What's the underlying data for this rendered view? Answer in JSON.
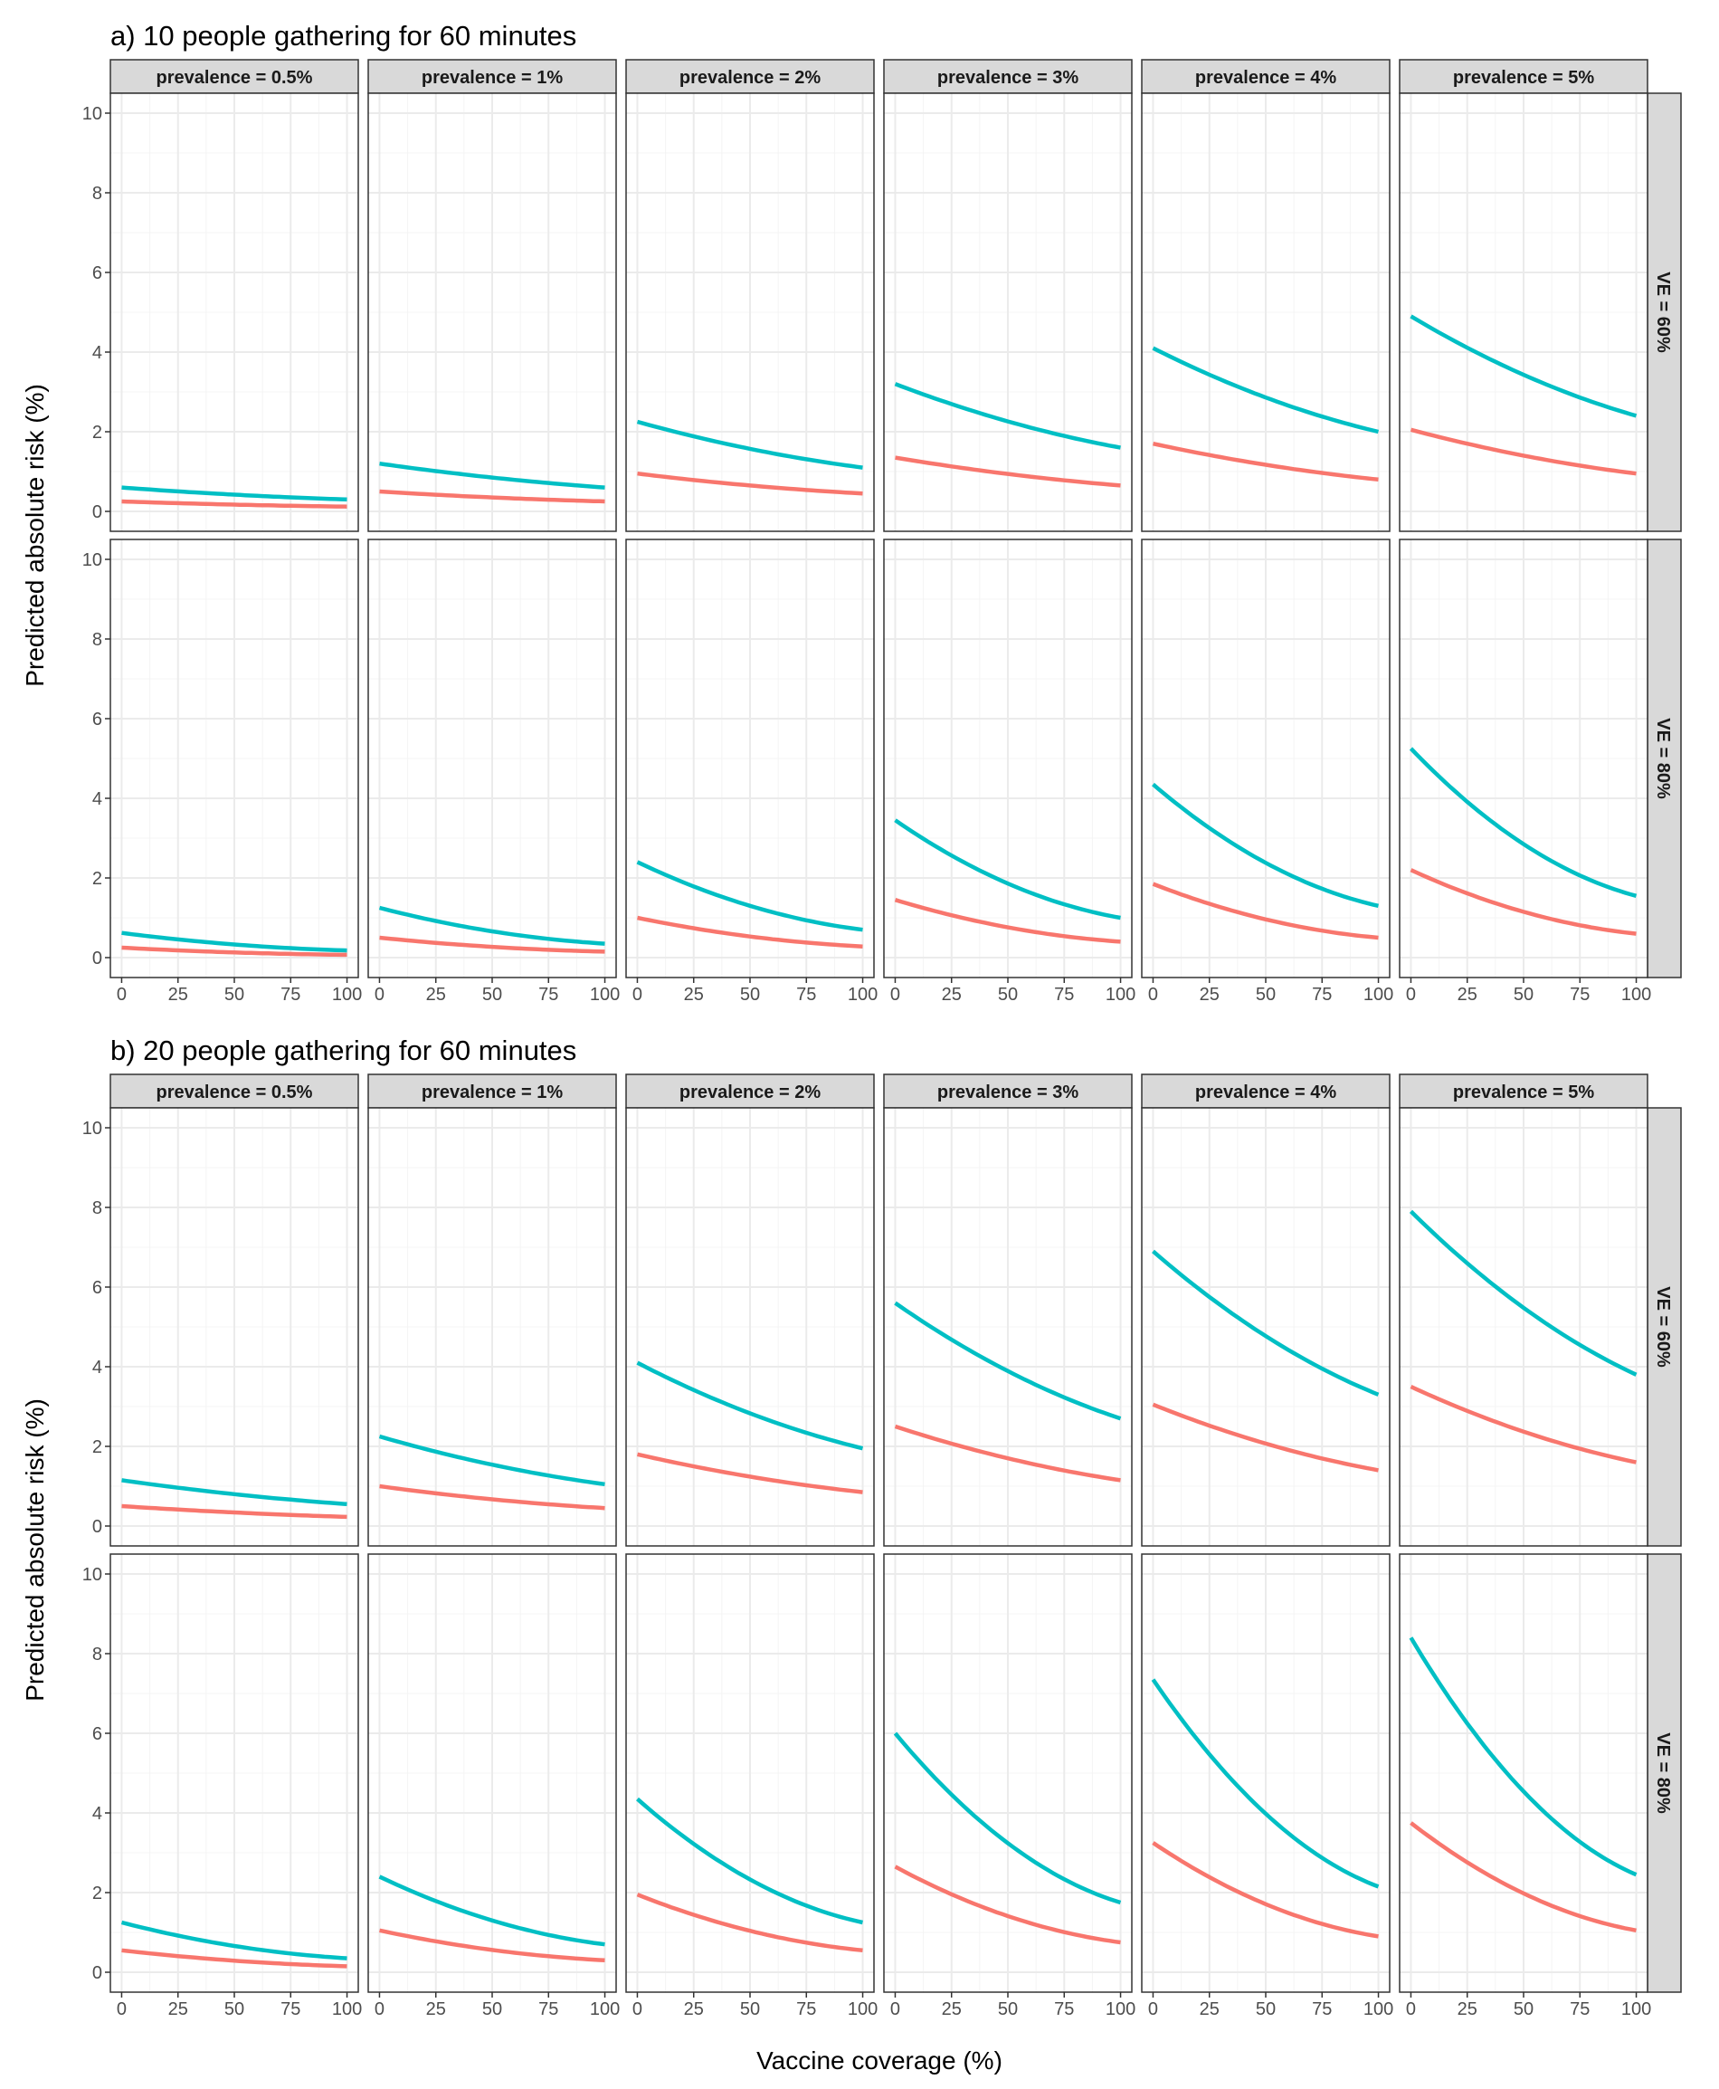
{
  "figure": {
    "xlabel": "Vaccine coverage (%)",
    "series_colors": [
      "#00BFC4",
      "#F8766D"
    ],
    "strip_fill": "#D9D9D9",
    "grid": true
  },
  "chart_data": [
    {
      "type": "line",
      "title": "a)  10 people gathering for 60 minutes",
      "ylabel": "Predicted absolute risk (%)",
      "xlabel": "Vaccine coverage (%)",
      "xlim": [
        -5,
        105
      ],
      "ylim": [
        -0.5,
        10.5
      ],
      "xticks": [
        0,
        25,
        50,
        75,
        100
      ],
      "yticks": [
        0,
        2,
        4,
        6,
        8,
        10
      ],
      "facet_cols": [
        "prevalence = 0.5%",
        "prevalence = 1%",
        "prevalence = 2%",
        "prevalence = 3%",
        "prevalence = 4%",
        "prevalence = 5%"
      ],
      "facet_rows": [
        "VE = 60%",
        "VE = 80%"
      ],
      "x": [
        0,
        50,
        100
      ],
      "panels": [
        {
          "prevalence": "0.5%",
          "VE": "60%",
          "series": [
            {
              "color": "#00BFC4",
              "y": [
                0.6,
                0.42,
                0.3
              ]
            },
            {
              "color": "#F8766D",
              "y": [
                0.25,
                0.17,
                0.12
              ]
            }
          ]
        },
        {
          "prevalence": "1%",
          "VE": "60%",
          "series": [
            {
              "color": "#00BFC4",
              "y": [
                1.2,
                0.85,
                0.6
              ]
            },
            {
              "color": "#F8766D",
              "y": [
                0.5,
                0.35,
                0.25
              ]
            }
          ]
        },
        {
          "prevalence": "2%",
          "VE": "60%",
          "series": [
            {
              "color": "#00BFC4",
              "y": [
                2.25,
                1.57,
                1.1
              ]
            },
            {
              "color": "#F8766D",
              "y": [
                0.95,
                0.65,
                0.45
              ]
            }
          ]
        },
        {
          "prevalence": "3%",
          "VE": "60%",
          "series": [
            {
              "color": "#00BFC4",
              "y": [
                3.2,
                2.26,
                1.6
              ]
            },
            {
              "color": "#F8766D",
              "y": [
                1.35,
                0.94,
                0.65
              ]
            }
          ]
        },
        {
          "prevalence": "4%",
          "VE": "60%",
          "series": [
            {
              "color": "#00BFC4",
              "y": [
                4.1,
                2.86,
                2.0
              ]
            },
            {
              "color": "#F8766D",
              "y": [
                1.7,
                1.17,
                0.8
              ]
            }
          ]
        },
        {
          "prevalence": "5%",
          "VE": "60%",
          "series": [
            {
              "color": "#00BFC4",
              "y": [
                4.9,
                3.43,
                2.4
              ]
            },
            {
              "color": "#F8766D",
              "y": [
                2.05,
                1.4,
                0.95
              ]
            }
          ]
        },
        {
          "prevalence": "0.5%",
          "VE": "80%",
          "series": [
            {
              "color": "#00BFC4",
              "y": [
                0.62,
                0.33,
                0.18
              ]
            },
            {
              "color": "#F8766D",
              "y": [
                0.25,
                0.13,
                0.07
              ]
            }
          ]
        },
        {
          "prevalence": "1%",
          "VE": "80%",
          "series": [
            {
              "color": "#00BFC4",
              "y": [
                1.25,
                0.66,
                0.35
              ]
            },
            {
              "color": "#F8766D",
              "y": [
                0.5,
                0.27,
                0.15
              ]
            }
          ]
        },
        {
          "prevalence": "2%",
          "VE": "80%",
          "series": [
            {
              "color": "#00BFC4",
              "y": [
                2.4,
                1.3,
                0.7
              ]
            },
            {
              "color": "#F8766D",
              "y": [
                1.0,
                0.53,
                0.28
              ]
            }
          ]
        },
        {
          "prevalence": "3%",
          "VE": "80%",
          "series": [
            {
              "color": "#00BFC4",
              "y": [
                3.45,
                1.86,
                1.0
              ]
            },
            {
              "color": "#F8766D",
              "y": [
                1.45,
                0.76,
                0.4
              ]
            }
          ]
        },
        {
          "prevalence": "4%",
          "VE": "80%",
          "series": [
            {
              "color": "#00BFC4",
              "y": [
                4.35,
                2.38,
                1.3
              ]
            },
            {
              "color": "#F8766D",
              "y": [
                1.85,
                0.96,
                0.5
              ]
            }
          ]
        },
        {
          "prevalence": "5%",
          "VE": "80%",
          "series": [
            {
              "color": "#00BFC4",
              "y": [
                5.25,
                2.85,
                1.55
              ]
            },
            {
              "color": "#F8766D",
              "y": [
                2.2,
                1.15,
                0.6
              ]
            }
          ]
        }
      ]
    },
    {
      "type": "line",
      "title": "b)  20 people gathering for 60 minutes",
      "ylabel": "Predicted absolute risk (%)",
      "xlabel": "Vaccine coverage (%)",
      "xlim": [
        -5,
        105
      ],
      "ylim": [
        -0.5,
        10.5
      ],
      "xticks": [
        0,
        25,
        50,
        75,
        100
      ],
      "yticks": [
        0,
        2,
        4,
        6,
        8,
        10
      ],
      "facet_cols": [
        "prevalence = 0.5%",
        "prevalence = 1%",
        "prevalence = 2%",
        "prevalence = 3%",
        "prevalence = 4%",
        "prevalence = 5%"
      ],
      "facet_rows": [
        "VE = 60%",
        "VE = 80%"
      ],
      "x": [
        0,
        50,
        100
      ],
      "panels": [
        {
          "prevalence": "0.5%",
          "VE": "60%",
          "series": [
            {
              "color": "#00BFC4",
              "y": [
                1.15,
                0.8,
                0.55
              ]
            },
            {
              "color": "#F8766D",
              "y": [
                0.5,
                0.34,
                0.23
              ]
            }
          ]
        },
        {
          "prevalence": "1%",
          "VE": "60%",
          "series": [
            {
              "color": "#00BFC4",
              "y": [
                2.25,
                1.54,
                1.05
              ]
            },
            {
              "color": "#F8766D",
              "y": [
                1.0,
                0.67,
                0.45
              ]
            }
          ]
        },
        {
          "prevalence": "2%",
          "VE": "60%",
          "series": [
            {
              "color": "#00BFC4",
              "y": [
                4.1,
                2.83,
                1.95
              ]
            },
            {
              "color": "#F8766D",
              "y": [
                1.8,
                1.24,
                0.85
              ]
            }
          ]
        },
        {
          "prevalence": "3%",
          "VE": "60%",
          "series": [
            {
              "color": "#00BFC4",
              "y": [
                5.6,
                3.89,
                2.7
              ]
            },
            {
              "color": "#F8766D",
              "y": [
                2.5,
                1.7,
                1.15
              ]
            }
          ]
        },
        {
          "prevalence": "4%",
          "VE": "60%",
          "series": [
            {
              "color": "#00BFC4",
              "y": [
                6.9,
                4.77,
                3.3
              ]
            },
            {
              "color": "#F8766D",
              "y": [
                3.05,
                2.07,
                1.4
              ]
            }
          ]
        },
        {
          "prevalence": "5%",
          "VE": "60%",
          "series": [
            {
              "color": "#00BFC4",
              "y": [
                7.9,
                5.48,
                3.8
              ]
            },
            {
              "color": "#F8766D",
              "y": [
                3.5,
                2.37,
                1.6
              ]
            }
          ]
        },
        {
          "prevalence": "0.5%",
          "VE": "80%",
          "series": [
            {
              "color": "#00BFC4",
              "y": [
                1.25,
                0.66,
                0.35
              ]
            },
            {
              "color": "#F8766D",
              "y": [
                0.55,
                0.29,
                0.15
              ]
            }
          ]
        },
        {
          "prevalence": "1%",
          "VE": "80%",
          "series": [
            {
              "color": "#00BFC4",
              "y": [
                2.4,
                1.3,
                0.7
              ]
            },
            {
              "color": "#F8766D",
              "y": [
                1.05,
                0.56,
                0.3
              ]
            }
          ]
        },
        {
          "prevalence": "2%",
          "VE": "80%",
          "series": [
            {
              "color": "#00BFC4",
              "y": [
                4.35,
                2.33,
                1.25
              ]
            },
            {
              "color": "#F8766D",
              "y": [
                1.95,
                1.04,
                0.55
              ]
            }
          ]
        },
        {
          "prevalence": "3%",
          "VE": "80%",
          "series": [
            {
              "color": "#00BFC4",
              "y": [
                6.0,
                3.24,
                1.75
              ]
            },
            {
              "color": "#F8766D",
              "y": [
                2.65,
                1.41,
                0.75
              ]
            }
          ]
        },
        {
          "prevalence": "4%",
          "VE": "80%",
          "series": [
            {
              "color": "#00BFC4",
              "y": [
                7.35,
                3.98,
                2.15
              ]
            },
            {
              "color": "#F8766D",
              "y": [
                3.25,
                1.71,
                0.9
              ]
            }
          ]
        },
        {
          "prevalence": "5%",
          "VE": "80%",
          "series": [
            {
              "color": "#00BFC4",
              "y": [
                8.4,
                4.54,
                2.45
              ]
            },
            {
              "color": "#F8766D",
              "y": [
                3.75,
                1.98,
                1.05
              ]
            }
          ]
        }
      ]
    }
  ]
}
